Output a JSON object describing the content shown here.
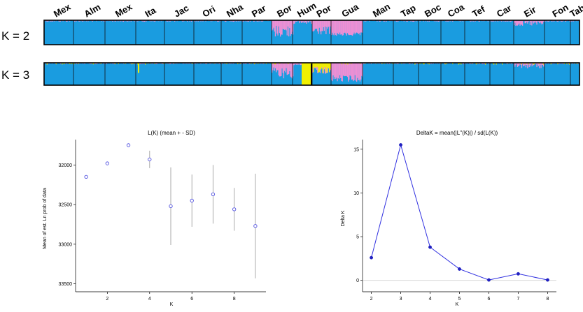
{
  "structure": {
    "populations": [
      "Mex",
      "Alm",
      "Mex",
      "Ita",
      "Jac",
      "Ori",
      "Nha",
      "Par",
      "Bor",
      "Hum",
      "Por",
      "Gua",
      "Man",
      "Tap",
      "Boc",
      "Coa",
      "Tef",
      "Car",
      "Eir",
      "Fon",
      "Tab"
    ],
    "rows": [
      {
        "label": "K = 2",
        "colors": [
          "#1a9ce0",
          "#ee8fd4"
        ]
      },
      {
        "label": "K = 3",
        "colors": [
          "#1a9ce0",
          "#ee8fd4",
          "#f0f000"
        ]
      }
    ]
  },
  "chart_data": [
    {
      "type": "scatter",
      "title": "L(K) (mean + - SD)",
      "xlabel": "K",
      "ylabel": "Mean of est. Ln prob of data",
      "x": [
        1,
        2,
        3,
        4,
        5,
        6,
        7,
        8,
        9
      ],
      "y": [
        -32150,
        -31980,
        -31750,
        -31930,
        -32520,
        -32450,
        -32370,
        -32560,
        -32770
      ],
      "sd": [
        5,
        10,
        15,
        110,
        490,
        330,
        370,
        270,
        660
      ],
      "xticks": [
        2,
        4,
        6,
        8
      ],
      "yticks": [
        -32000,
        -32500,
        -33000,
        -33500
      ],
      "ytick_labels": [
        "32000",
        "32500",
        "33000",
        "33500"
      ],
      "xlim": [
        0.5,
        9.5
      ],
      "ylim": [
        -33600,
        -31680
      ],
      "color": "#5050e0"
    },
    {
      "type": "line",
      "title": "DeltaK = mean(|L''(K)|) / sd(L(K))",
      "xlabel": "K",
      "ylabel": "Delta K",
      "x": [
        2,
        3,
        4,
        5,
        6,
        7,
        8
      ],
      "y": [
        2.6,
        15.5,
        3.8,
        1.3,
        0.05,
        0.75,
        0.05
      ],
      "xticks": [
        2,
        3,
        4,
        5,
        6,
        7,
        8
      ],
      "yticks": [
        0,
        5,
        10,
        15
      ],
      "xlim": [
        1.7,
        8.3
      ],
      "ylim": [
        -1.3,
        16.1
      ],
      "color": "#3030e0"
    }
  ]
}
